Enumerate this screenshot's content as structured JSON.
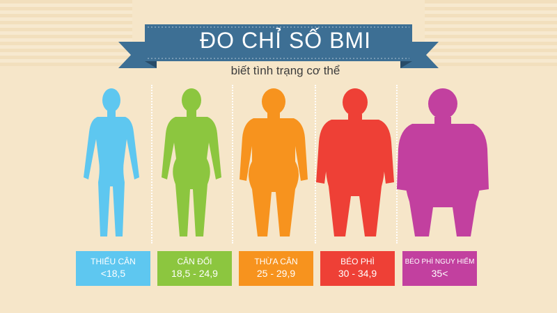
{
  "header": {
    "title": "ĐO CHỈ SỐ BMI",
    "subtitle": "biết tình trạng cơ thể"
  },
  "categories": [
    {
      "name": "THIẾU CÂN",
      "range": "<18,5",
      "color": "#5ec7f0"
    },
    {
      "name": "CÂN ĐỐI",
      "range": "18,5 - 24,9",
      "color": "#8cc63f"
    },
    {
      "name": "THỪA CÂN",
      "range": "25 - 29,9",
      "color": "#f7931e"
    },
    {
      "name": "BÉO PHÌ",
      "range": "30 - 34,9",
      "color": "#ee4036"
    },
    {
      "name": "BÉO PHÌ NGUY HIỂM",
      "range": "35<",
      "color": "#c2409f"
    }
  ],
  "colors": {
    "ribbon": "#3d6f94",
    "ribbon_dark": "#274b68",
    "background": "#f6e6c9"
  }
}
